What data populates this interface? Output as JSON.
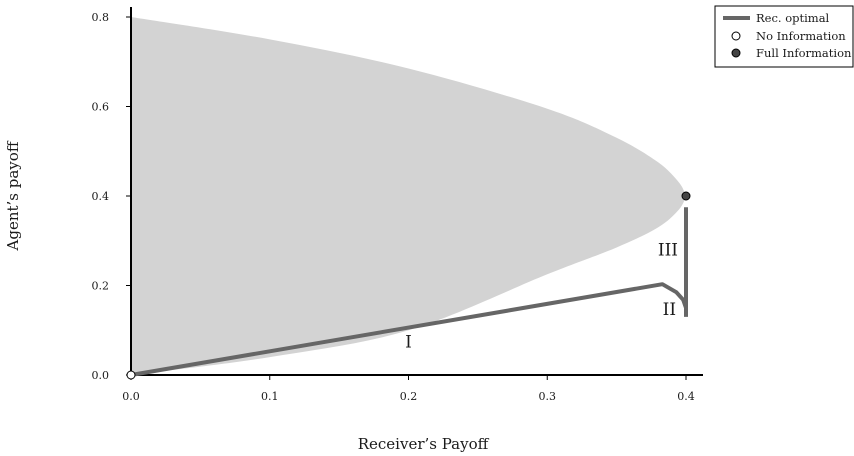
{
  "chart_data": {
    "type": "area",
    "xlabel": "Receiver’s Payoff",
    "ylabel": "Agent’s payoff",
    "xlim": [
      0,
      0.41
    ],
    "ylim": [
      0,
      0.8
    ],
    "x_ticks": [
      0.0,
      0.1,
      0.2,
      0.3,
      0.4
    ],
    "x_tick_labels": [
      "0.0",
      "0.1",
      "0.2",
      "0.3",
      "0.4"
    ],
    "y_ticks": [
      0.0,
      0.2,
      0.4,
      0.6,
      0.8
    ],
    "y_tick_labels": [
      "0.0",
      "0.2",
      "0.4",
      "0.6",
      "0.8"
    ],
    "feasible_region": {
      "color": "#d3d3d3",
      "upper_boundary": [
        [
          0.0,
          0.8
        ],
        [
          0.1,
          0.75
        ],
        [
          0.2,
          0.685
        ],
        [
          0.3,
          0.595
        ],
        [
          0.35,
          0.53
        ],
        [
          0.38,
          0.475
        ],
        [
          0.395,
          0.43
        ],
        [
          0.4,
          0.4
        ]
      ],
      "lower_boundary": [
        [
          0.4,
          0.4
        ],
        [
          0.395,
          0.37
        ],
        [
          0.38,
          0.33
        ],
        [
          0.35,
          0.285
        ],
        [
          0.3,
          0.225
        ],
        [
          0.2,
          0.1
        ],
        [
          0.1,
          0.04
        ],
        [
          0.0,
          0.0
        ]
      ]
    },
    "series": [
      {
        "name": "Rec. optimal",
        "type": "line",
        "color": "#666666",
        "points": [
          [
            0.0,
            0.0
          ],
          [
            0.383,
            0.203
          ],
          [
            0.393,
            0.185
          ],
          [
            0.398,
            0.168
          ],
          [
            0.4,
            0.15
          ],
          [
            0.4,
            0.13
          ]
        ]
      },
      {
        "name": "Rec. optimal",
        "type": "line",
        "color": "#666666",
        "points": [
          [
            0.4,
            0.13
          ],
          [
            0.4,
            0.375
          ]
        ]
      },
      {
        "name": "No Information",
        "type": "scatter",
        "marker": "open-circle",
        "points": [
          [
            0.0,
            0.0
          ]
        ]
      },
      {
        "name": "Full Information",
        "type": "scatter",
        "marker": "filled-circle",
        "color": "#444444",
        "points": [
          [
            0.4,
            0.4
          ]
        ]
      }
    ],
    "annotations": [
      {
        "text": "I",
        "x": 0.2,
        "y": 0.075
      },
      {
        "text": "II",
        "x": 0.388,
        "y": 0.147
      },
      {
        "text": "III",
        "x": 0.387,
        "y": 0.28
      }
    ],
    "legend": {
      "placement": "top-right",
      "entries": [
        {
          "label": "Rec. optimal",
          "marker": "line",
          "color": "#666666"
        },
        {
          "label": "No Information",
          "marker": "open-circle",
          "color": "#ffffff"
        },
        {
          "label": "Full Information",
          "marker": "filled-circle",
          "color": "#444444"
        }
      ]
    }
  }
}
